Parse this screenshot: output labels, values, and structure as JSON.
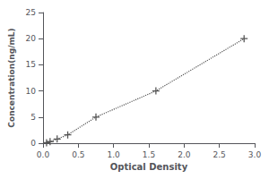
{
  "chart_data": {
    "type": "line",
    "xlabel": "Optical Density",
    "ylabel": "Concentration(ng/mL)",
    "x": [
      0.05,
      0.1,
      0.2,
      0.35,
      0.75,
      1.6,
      2.85
    ],
    "values": [
      0.1,
      0.3,
      0.8,
      1.6,
      5.0,
      10.0,
      20.0
    ],
    "color": "#555555",
    "marker": "plus",
    "line_style": "dotted",
    "xlim": [
      0,
      3.0
    ],
    "xticks": [
      {
        "value": 0,
        "label": "0.0"
      },
      0.5,
      {
        "value": 1.0,
        "label": "1.0"
      },
      1.5,
      {
        "value": 2.0,
        "label": "2.0"
      },
      2.5,
      {
        "value": 3.0,
        "label": "3.0"
      }
    ],
    "ylim": [
      0,
      25
    ],
    "yticks": [
      0,
      5,
      10,
      15,
      20,
      25
    ],
    "grid": false
  }
}
